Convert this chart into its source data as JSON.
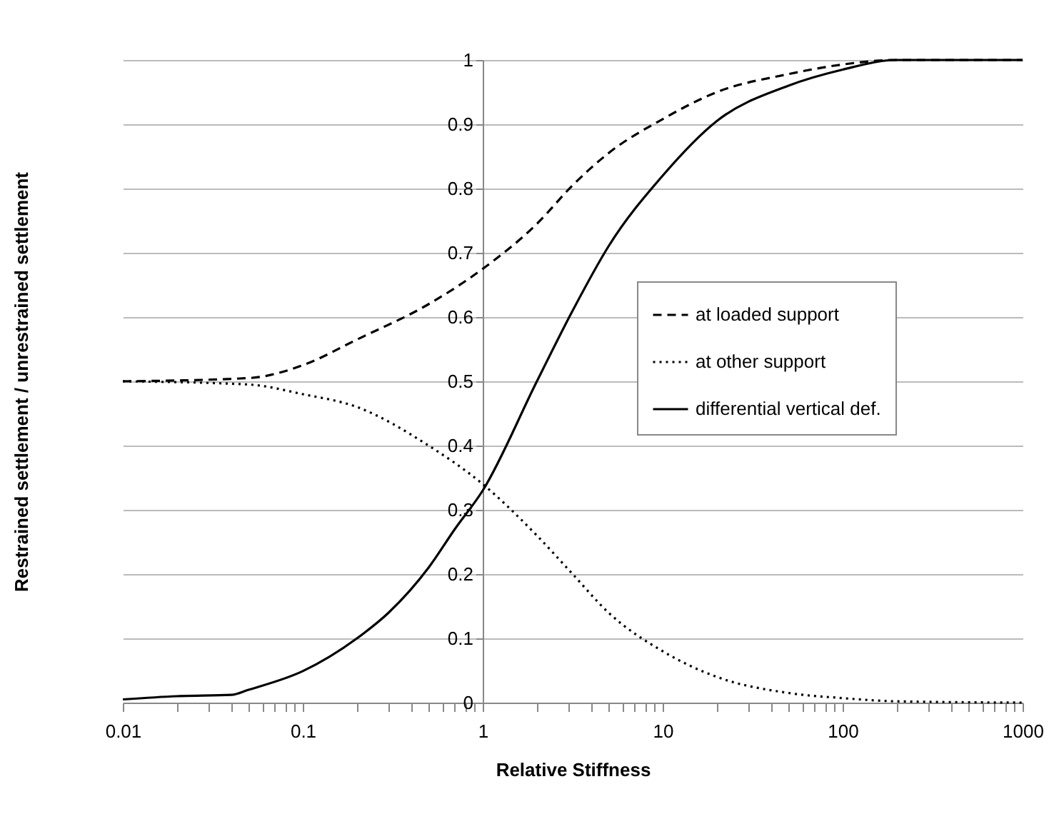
{
  "chart_data": {
    "type": "line",
    "xlabel": "Relative Stiffness",
    "ylabel": "Restrained settlement / unrestrained settlement",
    "log": "x",
    "xlim": [
      0.01,
      1000
    ],
    "ylim": [
      0,
      1
    ],
    "xticks": [
      0.01,
      {
        "value": 0.02,
        "label": null
      },
      {
        "value": 0.03,
        "label": null
      },
      {
        "value": 0.04,
        "label": null
      },
      {
        "value": 0.05,
        "label": null
      },
      {
        "value": 0.06,
        "label": null
      },
      {
        "value": 0.07,
        "label": null
      },
      {
        "value": 0.08,
        "label": null
      },
      {
        "value": 0.09,
        "label": null
      },
      0.1,
      {
        "value": 0.2,
        "label": null
      },
      {
        "value": 0.3,
        "label": null
      },
      {
        "value": 0.4,
        "label": null
      },
      {
        "value": 0.5,
        "label": null
      },
      {
        "value": 0.6,
        "label": null
      },
      {
        "value": 0.7,
        "label": null
      },
      {
        "value": 0.8,
        "label": null
      },
      {
        "value": 0.9,
        "label": null
      },
      1,
      {
        "value": 2,
        "label": null
      },
      {
        "value": 3,
        "label": null
      },
      {
        "value": 4,
        "label": null
      },
      {
        "value": 5,
        "label": null
      },
      {
        "value": 6,
        "label": null
      },
      {
        "value": 7,
        "label": null
      },
      {
        "value": 8,
        "label": null
      },
      {
        "value": 9,
        "label": null
      },
      10,
      {
        "value": 20,
        "label": null
      },
      {
        "value": 30,
        "label": null
      },
      {
        "value": 40,
        "label": null
      },
      {
        "value": 50,
        "label": null
      },
      {
        "value": 60,
        "label": null
      },
      {
        "value": 70,
        "label": null
      },
      {
        "value": 80,
        "label": null
      },
      {
        "value": 90,
        "label": null
      },
      100,
      {
        "value": 200,
        "label": null
      },
      {
        "value": 300,
        "label": null
      },
      {
        "value": 400,
        "label": null
      },
      {
        "value": 500,
        "label": null
      },
      {
        "value": 600,
        "label": null
      },
      {
        "value": 700,
        "label": null
      },
      {
        "value": 800,
        "label": null
      },
      {
        "value": 900,
        "label": null
      },
      1000
    ],
    "yticks": [
      0,
      0.1,
      0.2,
      0.3,
      0.4,
      0.5,
      0.6,
      0.7,
      0.8,
      0.9,
      1
    ],
    "grid": "y",
    "legend": "right",
    "series": [
      {
        "name": "at loaded support",
        "color": "#000000",
        "line_style": "dashed",
        "x": [
          0.01,
          0.05,
          0.1,
          0.2,
          0.5,
          1,
          2,
          3.16,
          5,
          10,
          20,
          50,
          100,
          200,
          1000
        ],
        "values": [
          0.5,
          0.505,
          0.525,
          0.565,
          0.62,
          0.675,
          0.745,
          0.805,
          0.855,
          0.908,
          0.95,
          0.978,
          0.993,
          1,
          1
        ]
      },
      {
        "name": "at other support",
        "color": "#000000",
        "line_style": "dotted",
        "x": [
          0.01,
          0.05,
          0.1,
          0.2,
          0.5,
          1,
          2,
          3.16,
          5,
          10,
          20,
          50,
          100,
          200,
          1000
        ],
        "values": [
          0.5,
          0.495,
          0.48,
          0.46,
          0.4,
          0.34,
          0.26,
          0.2,
          0.14,
          0.08,
          0.04,
          0.015,
          0.007,
          0.002,
          0
        ]
      },
      {
        "name": "differential vertical def.",
        "color": "#000000",
        "line_style": "solid",
        "x": [
          0.01,
          0.02,
          0.04,
          0.05,
          0.1,
          0.2,
          0.3,
          0.5,
          0.7,
          1,
          2,
          3.16,
          5,
          10,
          20,
          50,
          100,
          200,
          1000
        ],
        "values": [
          0.005,
          0.01,
          0.012,
          0.02,
          0.049,
          0.1,
          0.14,
          0.21,
          0.27,
          0.33,
          0.5,
          0.61,
          0.71,
          0.82,
          0.905,
          0.96,
          0.985,
          1,
          1
        ]
      }
    ]
  }
}
